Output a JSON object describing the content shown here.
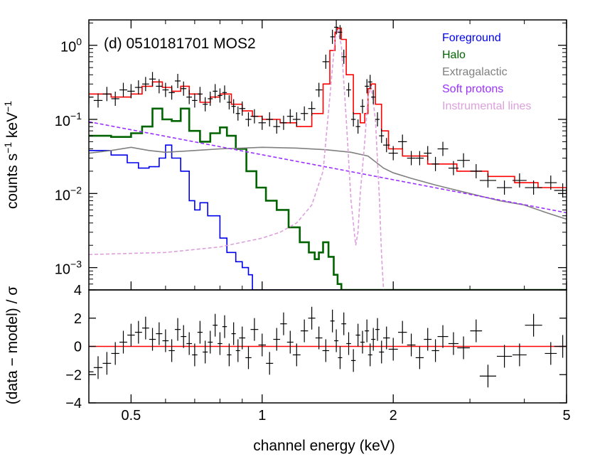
{
  "chart_data": {
    "type": "line",
    "title": "(d) 0510181701 MOS2",
    "xlabel": "channel energy (keV)",
    "xscale": "log",
    "xlim": [
      0.4,
      5
    ],
    "x_ticks": [
      {
        "value": 0.5,
        "label": "0.5"
      },
      {
        "value": 1,
        "label": "1"
      },
      {
        "value": 2,
        "label": "2"
      },
      {
        "value": 5,
        "label": "5"
      }
    ],
    "top_panel": {
      "ylabel_main": "counts s",
      "ylabel_exp1": "−1",
      "ylabel_mid": " keV",
      "ylabel_exp2": "−1",
      "yscale": "log",
      "ylim": [
        0.0005,
        2.2
      ],
      "y_ticks": [
        {
          "value": 1,
          "base": "10",
          "exp": "0"
        },
        {
          "value": 0.1,
          "base": "10",
          "exp": "−1"
        },
        {
          "value": 0.01,
          "base": "10",
          "exp": "−2"
        },
        {
          "value": 0.001,
          "base": "10",
          "exp": "−3"
        }
      ],
      "legend_position": "top-right",
      "series": [
        {
          "name": "",
          "role": "total model",
          "color": "#ff0000",
          "step": true,
          "x": [
            0.4,
            0.45,
            0.5,
            0.53,
            0.56,
            0.59,
            0.62,
            0.65,
            0.68,
            0.72,
            0.76,
            0.8,
            0.85,
            0.9,
            0.95,
            1.0,
            1.1,
            1.2,
            1.3,
            1.38,
            1.43,
            1.47,
            1.49,
            1.52,
            1.56,
            1.62,
            1.68,
            1.72,
            1.75,
            1.78,
            1.82,
            1.88,
            1.95,
            2.1,
            2.4,
            2.8,
            3.3,
            3.8,
            4.3,
            5.0
          ],
          "y": [
            0.22,
            0.2,
            0.22,
            0.28,
            0.32,
            0.27,
            0.24,
            0.28,
            0.22,
            0.17,
            0.2,
            0.22,
            0.16,
            0.13,
            0.11,
            0.1,
            0.09,
            0.08,
            0.12,
            0.3,
            0.85,
            1.5,
            1.7,
            1.2,
            0.4,
            0.12,
            0.09,
            0.12,
            0.26,
            0.3,
            0.16,
            0.07,
            0.04,
            0.032,
            0.025,
            0.02,
            0.017,
            0.014,
            0.012,
            0.01
          ]
        },
        {
          "name": "Foreground",
          "color": "#0000ee",
          "step": true,
          "x": [
            0.4,
            0.45,
            0.49,
            0.52,
            0.55,
            0.58,
            0.6,
            0.62,
            0.65,
            0.68,
            0.7,
            0.72,
            0.75,
            0.8,
            0.83,
            0.87,
            0.9,
            0.93,
            0.95
          ],
          "y": [
            0.038,
            0.033,
            0.026,
            0.022,
            0.023,
            0.03,
            0.045,
            0.03,
            0.02,
            0.008,
            0.006,
            0.0075,
            0.005,
            0.0025,
            0.0016,
            0.0012,
            0.001,
            0.0008,
            0.0005
          ]
        },
        {
          "name": "Halo",
          "color": "#006400",
          "step": true,
          "x": [
            0.4,
            0.45,
            0.5,
            0.53,
            0.56,
            0.59,
            0.62,
            0.65,
            0.68,
            0.72,
            0.76,
            0.8,
            0.83,
            0.87,
            0.92,
            0.97,
            1.02,
            1.08,
            1.15,
            1.22,
            1.28,
            1.32,
            1.35,
            1.38,
            1.42,
            1.46,
            1.49,
            1.52
          ],
          "y": [
            0.06,
            0.058,
            0.065,
            0.08,
            0.14,
            0.1,
            0.095,
            0.14,
            0.07,
            0.05,
            0.065,
            0.078,
            0.06,
            0.04,
            0.02,
            0.012,
            0.008,
            0.006,
            0.0035,
            0.0022,
            0.0016,
            0.0013,
            0.0016,
            0.0022,
            0.0014,
            0.0008,
            0.0006,
            0.0005
          ]
        },
        {
          "name": "Extragalactic",
          "color": "#808080",
          "step": false,
          "x": [
            0.4,
            0.45,
            0.5,
            0.55,
            0.6,
            0.7,
            0.8,
            0.9,
            1.0,
            1.2,
            1.4,
            1.6,
            1.75,
            1.9,
            2.0,
            2.2,
            2.5,
            3.0,
            3.5,
            4.0,
            4.5,
            5.0
          ],
          "y": [
            0.035,
            0.038,
            0.042,
            0.038,
            0.036,
            0.038,
            0.04,
            0.041,
            0.042,
            0.041,
            0.039,
            0.036,
            0.032,
            0.022,
            0.019,
            0.016,
            0.013,
            0.01,
            0.008,
            0.007,
            0.0055,
            0.0045
          ]
        },
        {
          "name": "Soft protons",
          "color": "#9b30ff",
          "step": false,
          "dashed": true,
          "x": [
            0.4,
            5.0
          ],
          "y": [
            0.093,
            0.0055
          ]
        },
        {
          "name": "Instrumental lines",
          "color": "#dda0dd",
          "step": false,
          "dashed": true,
          "x": [
            0.4,
            0.6,
            0.8,
            1.0,
            1.1,
            1.2,
            1.3,
            1.38,
            1.43,
            1.47,
            1.49,
            1.52,
            1.56,
            1.6,
            1.64,
            1.66,
            1.68,
            1.72,
            1.75,
            1.78,
            1.82,
            1.86,
            1.88,
            1.9
          ],
          "y": [
            0.0015,
            0.0016,
            0.0019,
            0.0025,
            0.003,
            0.004,
            0.007,
            0.02,
            0.2,
            1.2,
            1.65,
            1.0,
            0.1,
            0.008,
            0.002,
            0.003,
            0.01,
            0.05,
            0.2,
            0.28,
            0.1,
            0.008,
            0.0015,
            0.0005
          ]
        }
      ],
      "data": {
        "color": "#000000",
        "x": [
          0.4,
          0.42,
          0.44,
          0.46,
          0.48,
          0.5,
          0.52,
          0.54,
          0.56,
          0.58,
          0.6,
          0.62,
          0.64,
          0.66,
          0.68,
          0.7,
          0.72,
          0.74,
          0.76,
          0.78,
          0.8,
          0.82,
          0.84,
          0.86,
          0.88,
          0.9,
          0.93,
          0.96,
          1.0,
          1.04,
          1.08,
          1.12,
          1.16,
          1.2,
          1.25,
          1.3,
          1.35,
          1.4,
          1.45,
          1.48,
          1.51,
          1.54,
          1.58,
          1.62,
          1.66,
          1.7,
          1.74,
          1.77,
          1.8,
          1.84,
          1.88,
          1.93,
          2.0,
          2.1,
          2.2,
          2.3,
          2.4,
          2.5,
          2.6,
          2.75,
          2.9,
          3.1,
          3.3,
          3.6,
          3.9,
          4.2,
          4.6,
          4.9
        ],
        "y": [
          0.2,
          0.18,
          0.22,
          0.19,
          0.25,
          0.24,
          0.27,
          0.3,
          0.35,
          0.28,
          0.25,
          0.23,
          0.33,
          0.26,
          0.2,
          0.18,
          0.22,
          0.16,
          0.19,
          0.24,
          0.21,
          0.23,
          0.17,
          0.15,
          0.12,
          0.14,
          0.1,
          0.11,
          0.09,
          0.1,
          0.08,
          0.09,
          0.11,
          0.1,
          0.12,
          0.14,
          0.25,
          0.6,
          1.3,
          1.75,
          1.5,
          0.7,
          0.25,
          0.1,
          0.08,
          0.15,
          0.28,
          0.32,
          0.2,
          0.1,
          0.06,
          0.045,
          0.035,
          0.05,
          0.03,
          0.03,
          0.035,
          0.025,
          0.04,
          0.022,
          0.028,
          0.02,
          0.015,
          0.012,
          0.015,
          0.012,
          0.014,
          0.011
        ]
      }
    },
    "bottom_panel": {
      "ylabel": "(data − model) / σ",
      "ylim": [
        -4,
        4
      ],
      "y_ticks": [
        {
          "value": 4,
          "label": "4"
        },
        {
          "value": 2,
          "label": "2"
        },
        {
          "value": 0,
          "label": "0"
        },
        {
          "value": -2,
          "label": "−2"
        },
        {
          "value": -4,
          "label": "−4"
        }
      ],
      "zero_line_color": "#ff0000",
      "residuals": {
        "x": [
          0.4,
          0.42,
          0.44,
          0.46,
          0.48,
          0.5,
          0.52,
          0.54,
          0.56,
          0.58,
          0.6,
          0.62,
          0.64,
          0.66,
          0.68,
          0.7,
          0.72,
          0.74,
          0.76,
          0.78,
          0.8,
          0.82,
          0.84,
          0.86,
          0.88,
          0.9,
          0.93,
          0.96,
          1.0,
          1.04,
          1.08,
          1.12,
          1.16,
          1.2,
          1.25,
          1.3,
          1.35,
          1.4,
          1.45,
          1.48,
          1.51,
          1.54,
          1.58,
          1.62,
          1.66,
          1.7,
          1.74,
          1.77,
          1.8,
          1.84,
          1.88,
          1.93,
          2.0,
          2.1,
          2.2,
          2.3,
          2.4,
          2.5,
          2.6,
          2.75,
          2.9,
          3.1,
          3.3,
          3.6,
          3.9,
          4.2,
          4.6,
          4.9
        ],
        "y": [
          -1.8,
          -1.5,
          -1.2,
          -0.5,
          0.3,
          0.8,
          1.0,
          1.3,
          0.5,
          0.9,
          0.4,
          -0.3,
          1.2,
          0.7,
          0.2,
          -0.6,
          1.0,
          -0.4,
          0.3,
          1.5,
          0.2,
          1.4,
          -0.6,
          0.9,
          -0.3,
          0.6,
          -0.8,
          1.2,
          0.1,
          -1.2,
          0.5,
          1.6,
          0.3,
          -0.6,
          1.1,
          2.0,
          0.6,
          -0.3,
          1.8,
          0.4,
          -0.8,
          1.6,
          0.2,
          -1.0,
          0.8,
          0.3,
          1.1,
          -0.6,
          0.5,
          1.2,
          -0.4,
          0.6,
          -0.2,
          1.0,
          0.1,
          -0.8,
          0.5,
          -0.3,
          0.7,
          0.2,
          -0.1,
          1.1,
          -2.1,
          -0.7,
          -0.6,
          1.5,
          -0.5,
          0.0
        ]
      }
    }
  }
}
